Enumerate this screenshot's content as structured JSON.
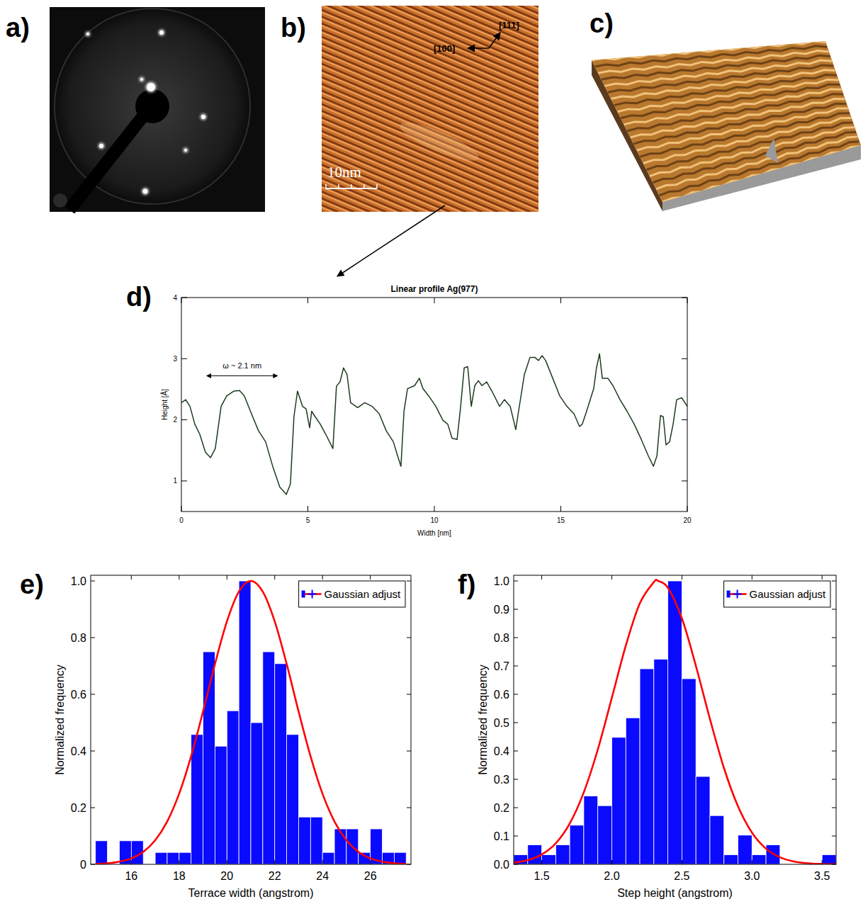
{
  "images": [
    {
      "panel": "a)"
    },
    {
      "panel": "b)",
      "labels": [
        "[111]",
        "[100]"
      ],
      "scale_bar": "10nm"
    },
    {
      "panel": "c)"
    }
  ],
  "chart_data": [
    {
      "panel": "d)",
      "type": "line",
      "title": "Linear profile Ag(977)",
      "x_label": "Width [nm]",
      "y_label": "Height [Å]",
      "x": [
        0,
        0.17,
        0.34,
        0.53,
        0.73,
        0.95,
        1.15,
        1.34,
        1.57,
        1.79,
        2.07,
        2.3,
        2.49,
        2.77,
        3.05,
        3.33,
        3.61,
        3.89,
        4.15,
        4.31,
        4.45,
        4.59,
        4.79,
        4.93,
        5.07,
        5.15,
        5.29,
        5.49,
        5.71,
        5.99,
        6.13,
        6.27,
        6.41,
        6.55,
        6.69,
        6.97,
        7.25,
        7.54,
        7.82,
        8.1,
        8.38,
        8.57,
        8.68,
        8.8,
        8.94,
        9.22,
        9.41,
        9.55,
        9.78,
        10.06,
        10.34,
        10.53,
        10.7,
        10.9,
        11.04,
        11.18,
        11.32,
        11.46,
        11.6,
        11.74,
        11.88,
        12.07,
        12.3,
        12.58,
        12.77,
        13.0,
        13.22,
        13.33,
        13.56,
        13.78,
        13.98,
        14.12,
        14.26,
        14.4,
        14.68,
        14.96,
        15.24,
        15.52,
        15.74,
        15.85,
        16.02,
        16.3,
        16.41,
        16.53,
        16.64,
        16.86,
        17.06,
        17.34,
        17.62,
        17.9,
        18.18,
        18.46,
        18.66,
        18.8,
        18.94,
        19.05,
        19.16,
        19.3,
        19.44,
        19.58,
        19.78,
        20.0
      ],
      "series": [
        {
          "color": "#1e3b1e",
          "values": [
            2.28,
            2.33,
            2.22,
            1.93,
            1.76,
            1.47,
            1.38,
            1.53,
            2.22,
            2.39,
            2.47,
            2.48,
            2.39,
            2.1,
            1.82,
            1.64,
            1.24,
            0.9,
            0.78,
            0.95,
            2.05,
            2.47,
            2.22,
            2.18,
            1.87,
            2.14,
            2.05,
            1.93,
            1.76,
            1.53,
            2.55,
            2.62,
            2.85,
            2.74,
            2.28,
            2.2,
            2.28,
            2.22,
            2.1,
            1.82,
            1.64,
            1.38,
            1.24,
            2.14,
            2.51,
            2.56,
            2.68,
            2.51,
            2.39,
            2.22,
            1.99,
            1.93,
            1.7,
            1.68,
            2.22,
            2.85,
            2.87,
            2.22,
            2.56,
            2.64,
            2.56,
            2.62,
            2.45,
            2.22,
            2.33,
            2.22,
            1.84,
            2.14,
            2.74,
            3.02,
            3.02,
            2.97,
            3.05,
            2.97,
            2.68,
            2.39,
            2.22,
            2.1,
            1.89,
            1.93,
            2.14,
            2.51,
            2.85,
            3.08,
            2.68,
            2.68,
            2.56,
            2.33,
            2.14,
            1.93,
            1.68,
            1.41,
            1.24,
            1.41,
            2.07,
            2.05,
            1.59,
            1.64,
            1.93,
            2.33,
            2.36,
            2.22
          ]
        }
      ],
      "xlim": [
        0,
        20
      ],
      "ylim": [
        0.5,
        4
      ],
      "xticks": [
        0,
        5,
        10,
        15,
        20
      ],
      "yticks": [
        1,
        2,
        3,
        4
      ],
      "annotations": [
        {
          "text": "ω ~ 2.1 nm",
          "x": [
            1.0,
            3.8
          ],
          "y": 2.72
        }
      ]
    },
    {
      "panel": "e)",
      "type": "histogram",
      "x_label": "Terrace width (angstrom)",
      "y_label": "Normalized frequency",
      "color": "#0a0aff",
      "bins": [
        14.5,
        15,
        15.5,
        16,
        16.5,
        17,
        17.5,
        18,
        18.5,
        19,
        19.5,
        20,
        20.5,
        21,
        21.5,
        22,
        22.5,
        23,
        23.5,
        24,
        24.5,
        25,
        25.5,
        26,
        26.5,
        27,
        27.5
      ],
      "counts": [
        0.083,
        0,
        0.083,
        0.083,
        0,
        0.042,
        0.042,
        0.042,
        0.458,
        0.75,
        0.417,
        0.542,
        1.0,
        0.5,
        0.75,
        0.708,
        0.458,
        0.167,
        0.167,
        0.042,
        0.125,
        0.125,
        0.042,
        0.125,
        0.042,
        0.042
      ],
      "series": [
        {
          "name": "Gaussian adjust",
          "type": "line",
          "color": "#ff0000",
          "x": [
            14.5,
            15,
            15.5,
            16,
            16.5,
            17,
            17.5,
            18,
            18.5,
            19,
            19.5,
            20,
            20.5,
            21,
            21.5,
            22,
            22.5,
            23,
            23.5,
            24,
            24.5,
            25,
            25.5,
            26,
            26.5,
            27,
            27.5
          ],
          "values": [
            0.0015,
            0.0039,
            0.0094,
            0.021,
            0.044,
            0.085,
            0.151,
            0.249,
            0.381,
            0.539,
            0.707,
            0.857,
            0.962,
            1.0,
            0.962,
            0.857,
            0.707,
            0.539,
            0.381,
            0.249,
            0.151,
            0.085,
            0.044,
            0.021,
            0.0094,
            0.0039,
            0.0015
          ]
        }
      ],
      "xlim": [
        14.3,
        27.7
      ],
      "ylim": [
        0,
        1.02
      ],
      "xticks": [
        16,
        18,
        20,
        22,
        24,
        26
      ],
      "yticks": [
        0,
        0.2,
        0.4,
        0.6,
        0.8,
        {
          "value": 1,
          "label": "1.0"
        }
      ],
      "legend": "upper right"
    },
    {
      "panel": "f)",
      "type": "histogram",
      "x_label": "Step height (angstrom)",
      "y_label": "Normalized frequency",
      "color": "#0a0aff",
      "bins": [
        1.3,
        1.4,
        1.5,
        1.6,
        1.7,
        1.8,
        1.9,
        2.0,
        2.1,
        2.2,
        2.3,
        2.4,
        2.5,
        2.6,
        2.7,
        2.8,
        2.9,
        3.0,
        3.1,
        3.2,
        3.3,
        3.4,
        3.5,
        3.6
      ],
      "counts": [
        0.034,
        0.069,
        0.034,
        0.069,
        0.138,
        0.241,
        0.207,
        0.448,
        0.517,
        0.69,
        0.724,
        1.0,
        0.655,
        0.31,
        0.172,
        0.034,
        0.103,
        0.034,
        0.069,
        0,
        0,
        0,
        0.034
      ],
      "series": [
        {
          "name": "Gaussian adjust",
          "type": "line",
          "color": "#ff0000",
          "x": [
            1.3,
            1.4,
            1.5,
            1.6,
            1.7,
            1.8,
            1.9,
            2.0,
            2.1,
            2.2,
            2.3,
            2.33,
            2.4,
            2.5,
            2.6,
            2.7,
            2.8,
            2.9,
            3.0,
            3.1,
            3.2,
            3.3,
            3.4,
            3.5,
            3.6
          ],
          "values": [
            0.0056,
            0.0147,
            0.0347,
            0.074,
            0.144,
            0.254,
            0.405,
            0.587,
            0.772,
            0.921,
            0.996,
            1.0,
            0.976,
            0.868,
            0.7,
            0.513,
            0.34,
            0.205,
            0.112,
            0.0553,
            0.0248,
            0.0101,
            0.0037,
            0.0013,
            0.0004
          ]
        }
      ],
      "xlim": [
        1.3,
        3.6
      ],
      "ylim": [
        0,
        1.02
      ],
      "xticks": [
        1.5,
        {
          "value": 2,
          "label": "2.0"
        },
        2.5,
        {
          "value": 3,
          "label": "3.0"
        },
        3.5
      ],
      "yticks": [
        {
          "value": 0,
          "label": "0.0"
        },
        0.1,
        0.2,
        0.3,
        0.4,
        0.5,
        0.6,
        0.7,
        0.8,
        0.9,
        {
          "value": 1,
          "label": "1.0"
        }
      ],
      "legend": "upper right"
    }
  ]
}
